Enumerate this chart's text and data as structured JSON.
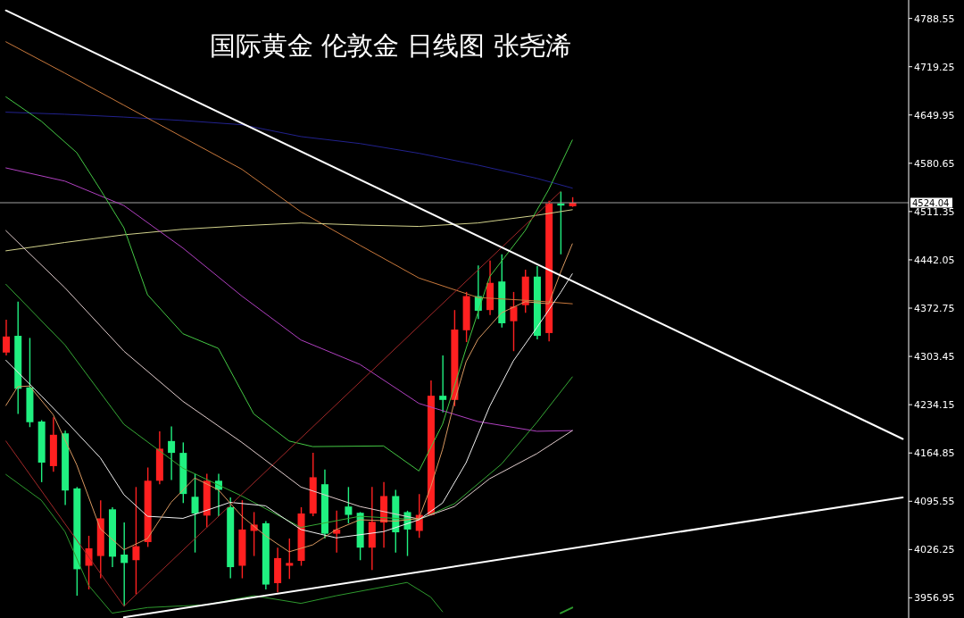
{
  "chart_data": {
    "type": "candlestick",
    "title": "国际黄金 伦敦金 日线图 张尧浠",
    "categories": [
      null,
      null,
      null,
      null,
      null,
      null,
      null,
      null,
      null,
      null,
      null,
      null,
      null,
      null,
      null,
      null,
      null,
      null,
      null,
      null,
      null,
      null,
      null,
      null,
      null,
      null,
      null,
      null,
      null,
      null,
      null,
      null,
      null,
      null,
      null,
      null,
      null,
      null,
      null,
      null,
      null,
      null,
      null,
      null,
      null,
      null,
      null,
      null,
      null,
      null,
      null,
      null,
      null,
      null,
      null,
      null,
      null,
      null,
      null,
      null,
      null,
      null,
      null,
      null,
      null,
      null,
      null,
      null,
      null,
      null,
      null,
      null,
      null,
      null,
      null,
      null,
      null
    ],
    "ohlc": [
      [
        4309,
        4356,
        4305,
        4332
      ],
      [
        4333,
        4382,
        4221,
        4257
      ],
      [
        4259,
        4330,
        4202,
        4209
      ],
      [
        4210,
        4212,
        4123,
        4151
      ],
      [
        4146,
        4216,
        4138,
        4191
      ],
      [
        4193,
        4197,
        4090,
        4111
      ],
      [
        4114,
        4116,
        3960,
        3998
      ],
      [
        4003,
        4046,
        3969,
        4028
      ],
      [
        4017,
        4097,
        3985,
        4071
      ],
      [
        4084,
        4087,
        4001,
        4016
      ],
      [
        4019,
        4065,
        3945,
        4007
      ],
      [
        4011,
        4116,
        3962,
        4031
      ],
      [
        4037,
        4144,
        4030,
        4125
      ],
      [
        4125,
        4196,
        4120,
        4171
      ],
      [
        4182,
        4203,
        4126,
        4165
      ],
      [
        4165,
        4180,
        4093,
        4106
      ],
      [
        4102,
        4135,
        4022,
        4078
      ],
      [
        4075,
        4135,
        4058,
        4125
      ],
      [
        4125,
        4135,
        4074,
        4112
      ],
      [
        4087,
        4101,
        3985,
        4001
      ],
      [
        4003,
        4097,
        3985,
        4055
      ],
      [
        4053,
        4080,
        4017,
        4062
      ],
      [
        4064,
        4067,
        3969,
        3976
      ],
      [
        3978,
        4029,
        3965,
        4014
      ],
      [
        4003,
        4042,
        3984,
        4007
      ],
      [
        4010,
        4087,
        4003,
        4078
      ],
      [
        4078,
        4165,
        4074,
        4130
      ],
      [
        4120,
        4141,
        4042,
        4049
      ],
      [
        4049,
        4082,
        4022,
        4055
      ],
      [
        4088,
        4116,
        4064,
        4076
      ],
      [
        4079,
        4080,
        4011,
        4029
      ],
      [
        4029,
        4116,
        3997,
        4066
      ],
      [
        4065,
        4123,
        4029,
        4103
      ],
      [
        4103,
        4112,
        4022,
        4051
      ],
      [
        4080,
        4082,
        4017,
        4055
      ],
      [
        4053,
        4106,
        4043,
        4076
      ],
      [
        4076,
        4269,
        4075,
        4247
      ],
      [
        4247,
        4305,
        4223,
        4241
      ],
      [
        4241,
        4370,
        4232,
        4342
      ],
      [
        4341,
        4396,
        4324,
        4390
      ],
      [
        4390,
        4434,
        4357,
        4369
      ],
      [
        4370,
        4441,
        4363,
        4409
      ],
      [
        4411,
        4450,
        4345,
        4351
      ],
      [
        4354,
        4396,
        4311,
        4375
      ],
      [
        4377,
        4428,
        4366,
        4418
      ],
      [
        4418,
        4433,
        4328,
        4333
      ],
      [
        4337,
        4527,
        4325,
        4523
      ],
      [
        4523,
        4540,
        4450,
        4520
      ],
      [
        4519,
        4532,
        4518,
        4524
      ],
      null,
      null,
      null,
      null,
      null,
      null,
      null,
      null,
      null,
      null,
      null,
      null,
      null,
      null,
      null,
      null,
      null,
      null,
      null,
      null,
      null,
      null,
      null,
      null,
      null,
      null,
      null,
      null
    ],
    "colors": [
      "#ff2020",
      "#20f080",
      "#20f080",
      "#20f080",
      "#ff2020",
      "#20f080",
      "#20f080",
      "#ff2020",
      "#ff2020",
      "#20f080",
      "#20f080",
      "#ff2020",
      "#ff2020",
      "#ff2020",
      "#20f080",
      "#20f080",
      "#20f080",
      "#ff2020",
      "#20f080",
      "#20f080",
      "#ff2020",
      "#ff2020",
      "#20f080",
      "#ff2020",
      "#ff2020",
      "#ff2020",
      "#ff2020",
      "#20f080",
      "#ff2020",
      "#20f080",
      "#20f080",
      "#ff2020",
      "#ff2020",
      "#20f080",
      "#20f080",
      "#ff2020",
      "#ff2020",
      "#20f080",
      "#ff2020",
      "#ff2020",
      "#20f080",
      "#ff2020",
      "#20f080",
      "#ff2020",
      "#ff2020",
      "#20f080",
      "#ff2020",
      "#20f080",
      "#ff2020",
      null,
      null,
      null,
      null,
      null,
      null,
      null,
      null,
      null,
      null,
      null,
      null,
      null,
      null,
      null,
      null,
      null,
      null,
      null,
      null,
      null,
      null,
      null,
      null,
      null,
      null,
      null,
      null
    ],
    "series": [
      {
        "type": "line",
        "color": "#22228e",
        "values": [
          4654,
          null,
          null,
          null,
          null,
          4651,
          null,
          null,
          null,
          null,
          4647,
          null,
          null,
          null,
          null,
          4642,
          null,
          null,
          null,
          null,
          4636,
          null,
          null,
          null,
          null,
          4619,
          null,
          null,
          null,
          null,
          4609,
          null,
          null,
          null,
          null,
          4595,
          null,
          null,
          null,
          null,
          4578,
          null,
          null,
          null,
          null,
          4559,
          null,
          null,
          4545,
          null,
          null,
          null,
          null,
          null,
          null,
          null,
          null,
          null,
          null,
          null,
          null,
          null,
          null,
          null,
          null,
          null,
          null,
          null,
          null,
          null,
          null,
          null,
          null,
          null,
          null,
          null,
          null
        ]
      },
      {
        "type": "line",
        "color": "#c8783c",
        "values": [
          4755,
          null,
          null,
          null,
          null,
          4710,
          null,
          null,
          null,
          null,
          4664,
          null,
          null,
          null,
          null,
          4618,
          null,
          null,
          null,
          null,
          4572,
          null,
          null,
          null,
          null,
          4511,
          null,
          null,
          null,
          null,
          4463,
          null,
          null,
          null,
          null,
          4416,
          null,
          null,
          null,
          null,
          4388,
          null,
          null,
          null,
          null,
          4383,
          null,
          null,
          4379,
          null,
          null,
          null,
          null,
          null,
          null,
          null,
          null,
          null,
          null,
          null,
          null,
          null,
          null,
          null,
          null,
          null,
          null,
          null,
          null,
          null,
          null,
          null,
          null,
          null,
          null,
          null,
          null
        ]
      },
      {
        "type": "line",
        "color": "#d2d28c",
        "values": [
          4455,
          null,
          null,
          null,
          null,
          4467,
          null,
          null,
          null,
          null,
          4478,
          null,
          null,
          null,
          null,
          4486,
          null,
          null,
          null,
          null,
          4491,
          null,
          null,
          null,
          null,
          4495,
          null,
          null,
          null,
          null,
          4492,
          null,
          null,
          null,
          null,
          4490,
          null,
          null,
          null,
          null,
          4495,
          null,
          null,
          null,
          null,
          4506,
          null,
          null,
          4514,
          null,
          null,
          null,
          null,
          null,
          null,
          null,
          null,
          null,
          null,
          null,
          null,
          null,
          null,
          null,
          null,
          null,
          null,
          null,
          null,
          null,
          null,
          null,
          null,
          null,
          null,
          null,
          null
        ]
      },
      {
        "type": "line",
        "color": "#b040c0",
        "values": [
          4574,
          null,
          null,
          null,
          null,
          4555,
          null,
          null,
          null,
          null,
          4520,
          null,
          null,
          null,
          null,
          4459,
          null,
          null,
          null,
          null,
          4390,
          null,
          null,
          null,
          null,
          4327,
          null,
          null,
          null,
          null,
          4292,
          null,
          null,
          null,
          null,
          4236,
          null,
          null,
          null,
          null,
          4210,
          null,
          null,
          null,
          null,
          4196,
          null,
          null,
          4197,
          null,
          null,
          null,
          null,
          null,
          null,
          null,
          null,
          null,
          null,
          null,
          null,
          null,
          null,
          null,
          null,
          null,
          null,
          null,
          null,
          null,
          null,
          null,
          null,
          null,
          null,
          null,
          null
        ]
      },
      {
        "type": "line",
        "color": "#44c844",
        "values": [
          4676,
          null,
          null,
          4641,
          null,
          null,
          4596,
          null,
          4543,
          null,
          4488,
          null,
          4392,
          null,
          null,
          4336,
          null,
          null,
          4315,
          null,
          null,
          4221,
          null,
          null,
          4182,
          null,
          4174,
          null,
          null,
          null,
          null,
          null,
          4175,
          null,
          null,
          4139,
          null,
          4206,
          null,
          4315,
          null,
          4418,
          null,
          null,
          4484,
          null,
          4543,
          null,
          4614,
          null,
          null,
          null,
          null,
          null,
          null,
          null,
          null,
          null,
          null,
          null,
          null,
          null,
          null,
          null,
          null,
          null,
          null,
          null,
          null,
          null,
          null,
          null,
          null,
          null,
          null,
          null,
          null
        ]
      },
      {
        "type": "line",
        "color": "#36a836",
        "values": [
          4407,
          null,
          null,
          null,
          null,
          4320,
          null,
          null,
          null,
          null,
          4206,
          null,
          null,
          null,
          null,
          4143,
          null,
          null,
          null,
          null,
          4103,
          null,
          null,
          null,
          null,
          4058,
          null,
          null,
          null,
          null,
          4074,
          null,
          null,
          null,
          null,
          4069,
          null,
          null,
          4092,
          null,
          null,
          null,
          4149,
          null,
          null,
          4209,
          null,
          null,
          4274,
          null,
          null,
          null,
          null,
          null,
          null,
          null,
          null,
          null,
          null,
          null,
          null,
          null,
          null,
          null,
          null,
          null,
          null,
          null,
          null,
          null,
          null,
          null,
          null,
          null,
          null,
          null,
          null
        ]
      },
      {
        "type": "line",
        "color": "#2e9a2e",
        "values": [
          4134,
          null,
          null,
          4097,
          null,
          4052,
          null,
          3975,
          null,
          3935,
          null,
          null,
          3943,
          null,
          null,
          null,
          null,
          3947,
          null,
          null,
          null,
          3960,
          null,
          null,
          null,
          3949,
          null,
          null,
          3960,
          null,
          null,
          null,
          null,
          null,
          3979,
          null,
          3958,
          3937,
          null,
          null,
          null,
          null,
          null,
          null,
          null,
          null,
          null,
          null,
          null,
          null,
          null,
          null,
          null,
          null,
          null,
          null,
          null,
          null,
          null,
          null,
          null,
          null,
          null,
          null,
          null,
          null,
          null,
          null,
          null,
          null,
          null,
          null,
          null,
          null,
          null,
          null,
          null
        ]
      },
      {
        "type": "line",
        "color": "#2e9a2e",
        "values": [
          null,
          null,
          null,
          null,
          null,
          null,
          null,
          null,
          null,
          null,
          null,
          null,
          null,
          null,
          null,
          null,
          null,
          null,
          null,
          null,
          null,
          null,
          null,
          null,
          null,
          null,
          null,
          null,
          null,
          null,
          null,
          null,
          null,
          null,
          null,
          null,
          null,
          null,
          null,
          null,
          null,
          null,
          null,
          null,
          null,
          null,
          null,
          3935,
          3943,
          null,
          null,
          null,
          null,
          null,
          null,
          null,
          null,
          null,
          null,
          null,
          null,
          null,
          null,
          null,
          null,
          null,
          null,
          null,
          null,
          null,
          null,
          null,
          null,
          null,
          null,
          null,
          null
        ]
      },
      {
        "type": "line",
        "color": "#e0cccc",
        "values": [
          4484,
          null,
          null,
          null,
          null,
          4402,
          null,
          null,
          null,
          null,
          4311,
          null,
          null,
          null,
          null,
          4239,
          null,
          null,
          null,
          null,
          4180,
          null,
          null,
          null,
          null,
          4116,
          null,
          null,
          null,
          null,
          4088,
          null,
          null,
          null,
          null,
          4070,
          null,
          null,
          4088,
          null,
          null,
          4128,
          null,
          null,
          null,
          4164,
          null,
          null,
          4197,
          null,
          null,
          null,
          null,
          null,
          null,
          null,
          null,
          null,
          null,
          null,
          null,
          null,
          null,
          null,
          null,
          null,
          null,
          null,
          null,
          null,
          null,
          null,
          null,
          null,
          null,
          null,
          null
        ]
      },
      {
        "type": "line",
        "color": "#f0f0f0",
        "values": [
          4298,
          null,
          null,
          4247,
          null,
          4212,
          null,
          null,
          4158,
          null,
          4105,
          null,
          4074,
          null,
          null,
          4071,
          null,
          null,
          null,
          4094,
          null,
          null,
          4089,
          null,
          null,
          4055,
          null,
          null,
          4043,
          null,
          null,
          null,
          4052,
          null,
          null,
          4069,
          null,
          4093,
          null,
          4151,
          null,
          4232,
          null,
          4297,
          null,
          4345,
          null,
          4395,
          4422,
          null,
          null,
          null,
          null,
          null,
          null,
          null,
          null,
          null,
          null,
          null,
          null,
          null,
          null,
          null,
          null,
          null,
          null,
          null,
          null,
          null,
          null,
          null,
          null,
          null,
          null,
          null,
          null
        ]
      },
      {
        "type": "line",
        "color": "#d89860",
        "values": [
          4233,
          4260,
          4261,
          null,
          4220,
          null,
          4148,
          null,
          4056,
          null,
          4026,
          null,
          4042,
          null,
          4094,
          null,
          4129,
          null,
          4112,
          null,
          4074,
          null,
          4046,
          null,
          4023,
          null,
          4033,
          null,
          4055,
          null,
          4069,
          null,
          null,
          4067,
          null,
          4071,
          4116,
          4170,
          4238,
          4296,
          4328,
          null,
          4366,
          null,
          4382,
          null,
          4379,
          4424,
          4465,
          null,
          null,
          null,
          null,
          null,
          null,
          null,
          null,
          null,
          null,
          null,
          null,
          null,
          null,
          null,
          null,
          null,
          null,
          null,
          null,
          null,
          null,
          null,
          null,
          null,
          null,
          null,
          null
        ]
      },
      {
        "type": "line",
        "color": "#a02828",
        "values": [
          4182,
          null,
          null,
          null,
          null,
          null,
          null,
          null,
          null,
          null,
          3945,
          null,
          null,
          null,
          null,
          null,
          null,
          null,
          null,
          null,
          null,
          null,
          null,
          null,
          null,
          null,
          null,
          null,
          null,
          null,
          null,
          null,
          null,
          null,
          null,
          null,
          null,
          null,
          null,
          null,
          null,
          null,
          null,
          null,
          null,
          null,
          null,
          4540,
          null,
          null,
          null,
          null,
          null,
          null,
          null,
          null,
          null,
          null,
          null,
          null,
          null,
          null,
          null,
          null,
          null,
          null,
          null,
          null,
          null,
          null,
          null,
          null,
          null,
          null,
          null,
          null,
          null
        ]
      },
      {
        "type": "line",
        "color": "#ffffff",
        "values": [
          4800,
          null,
          null,
          null,
          null,
          null,
          null,
          null,
          null,
          null,
          null,
          null,
          null,
          null,
          null,
          null,
          null,
          null,
          null,
          null,
          null,
          null,
          null,
          null,
          null,
          null,
          null,
          null,
          null,
          null,
          null,
          null,
          null,
          null,
          null,
          null,
          null,
          null,
          null,
          null,
          null,
          null,
          null,
          null,
          null,
          null,
          null,
          null,
          null,
          null,
          null,
          null,
          null,
          null,
          null,
          null,
          null,
          null,
          null,
          null,
          null,
          null,
          null,
          null,
          null,
          null,
          null,
          null,
          null,
          null,
          null,
          null,
          null,
          null,
          null,
          null,
          4185
        ]
      },
      {
        "type": "line",
        "color": "#ffffff",
        "values": [
          null,
          null,
          null,
          null,
          null,
          null,
          null,
          null,
          null,
          null,
          3929,
          null,
          null,
          null,
          null,
          null,
          null,
          null,
          null,
          null,
          null,
          null,
          null,
          null,
          null,
          null,
          null,
          null,
          null,
          null,
          null,
          null,
          null,
          null,
          null,
          null,
          null,
          null,
          null,
          null,
          null,
          null,
          null,
          null,
          null,
          null,
          null,
          null,
          null,
          null,
          null,
          null,
          null,
          null,
          null,
          null,
          null,
          null,
          null,
          null,
          null,
          null,
          null,
          null,
          null,
          null,
          null,
          null,
          null,
          null,
          null,
          null,
          null,
          null,
          null,
          null,
          4101
        ]
      }
    ],
    "ylim": [
      3928,
      4815
    ],
    "yticks": [
      3956.95,
      4026.25,
      4095.55,
      4164.85,
      4234.15,
      4303.45,
      4372.75,
      4442.05,
      4511.35,
      4580.65,
      4649.95,
      4719.25,
      4788.55
    ],
    "ref_lines": [
      {
        "axis": "y",
        "value": 4524.04,
        "label": "4524.04",
        "color": "#a0a0a0"
      }
    ],
    "tick_labels": "y",
    "marker": "none",
    "line_style": "solid"
  }
}
